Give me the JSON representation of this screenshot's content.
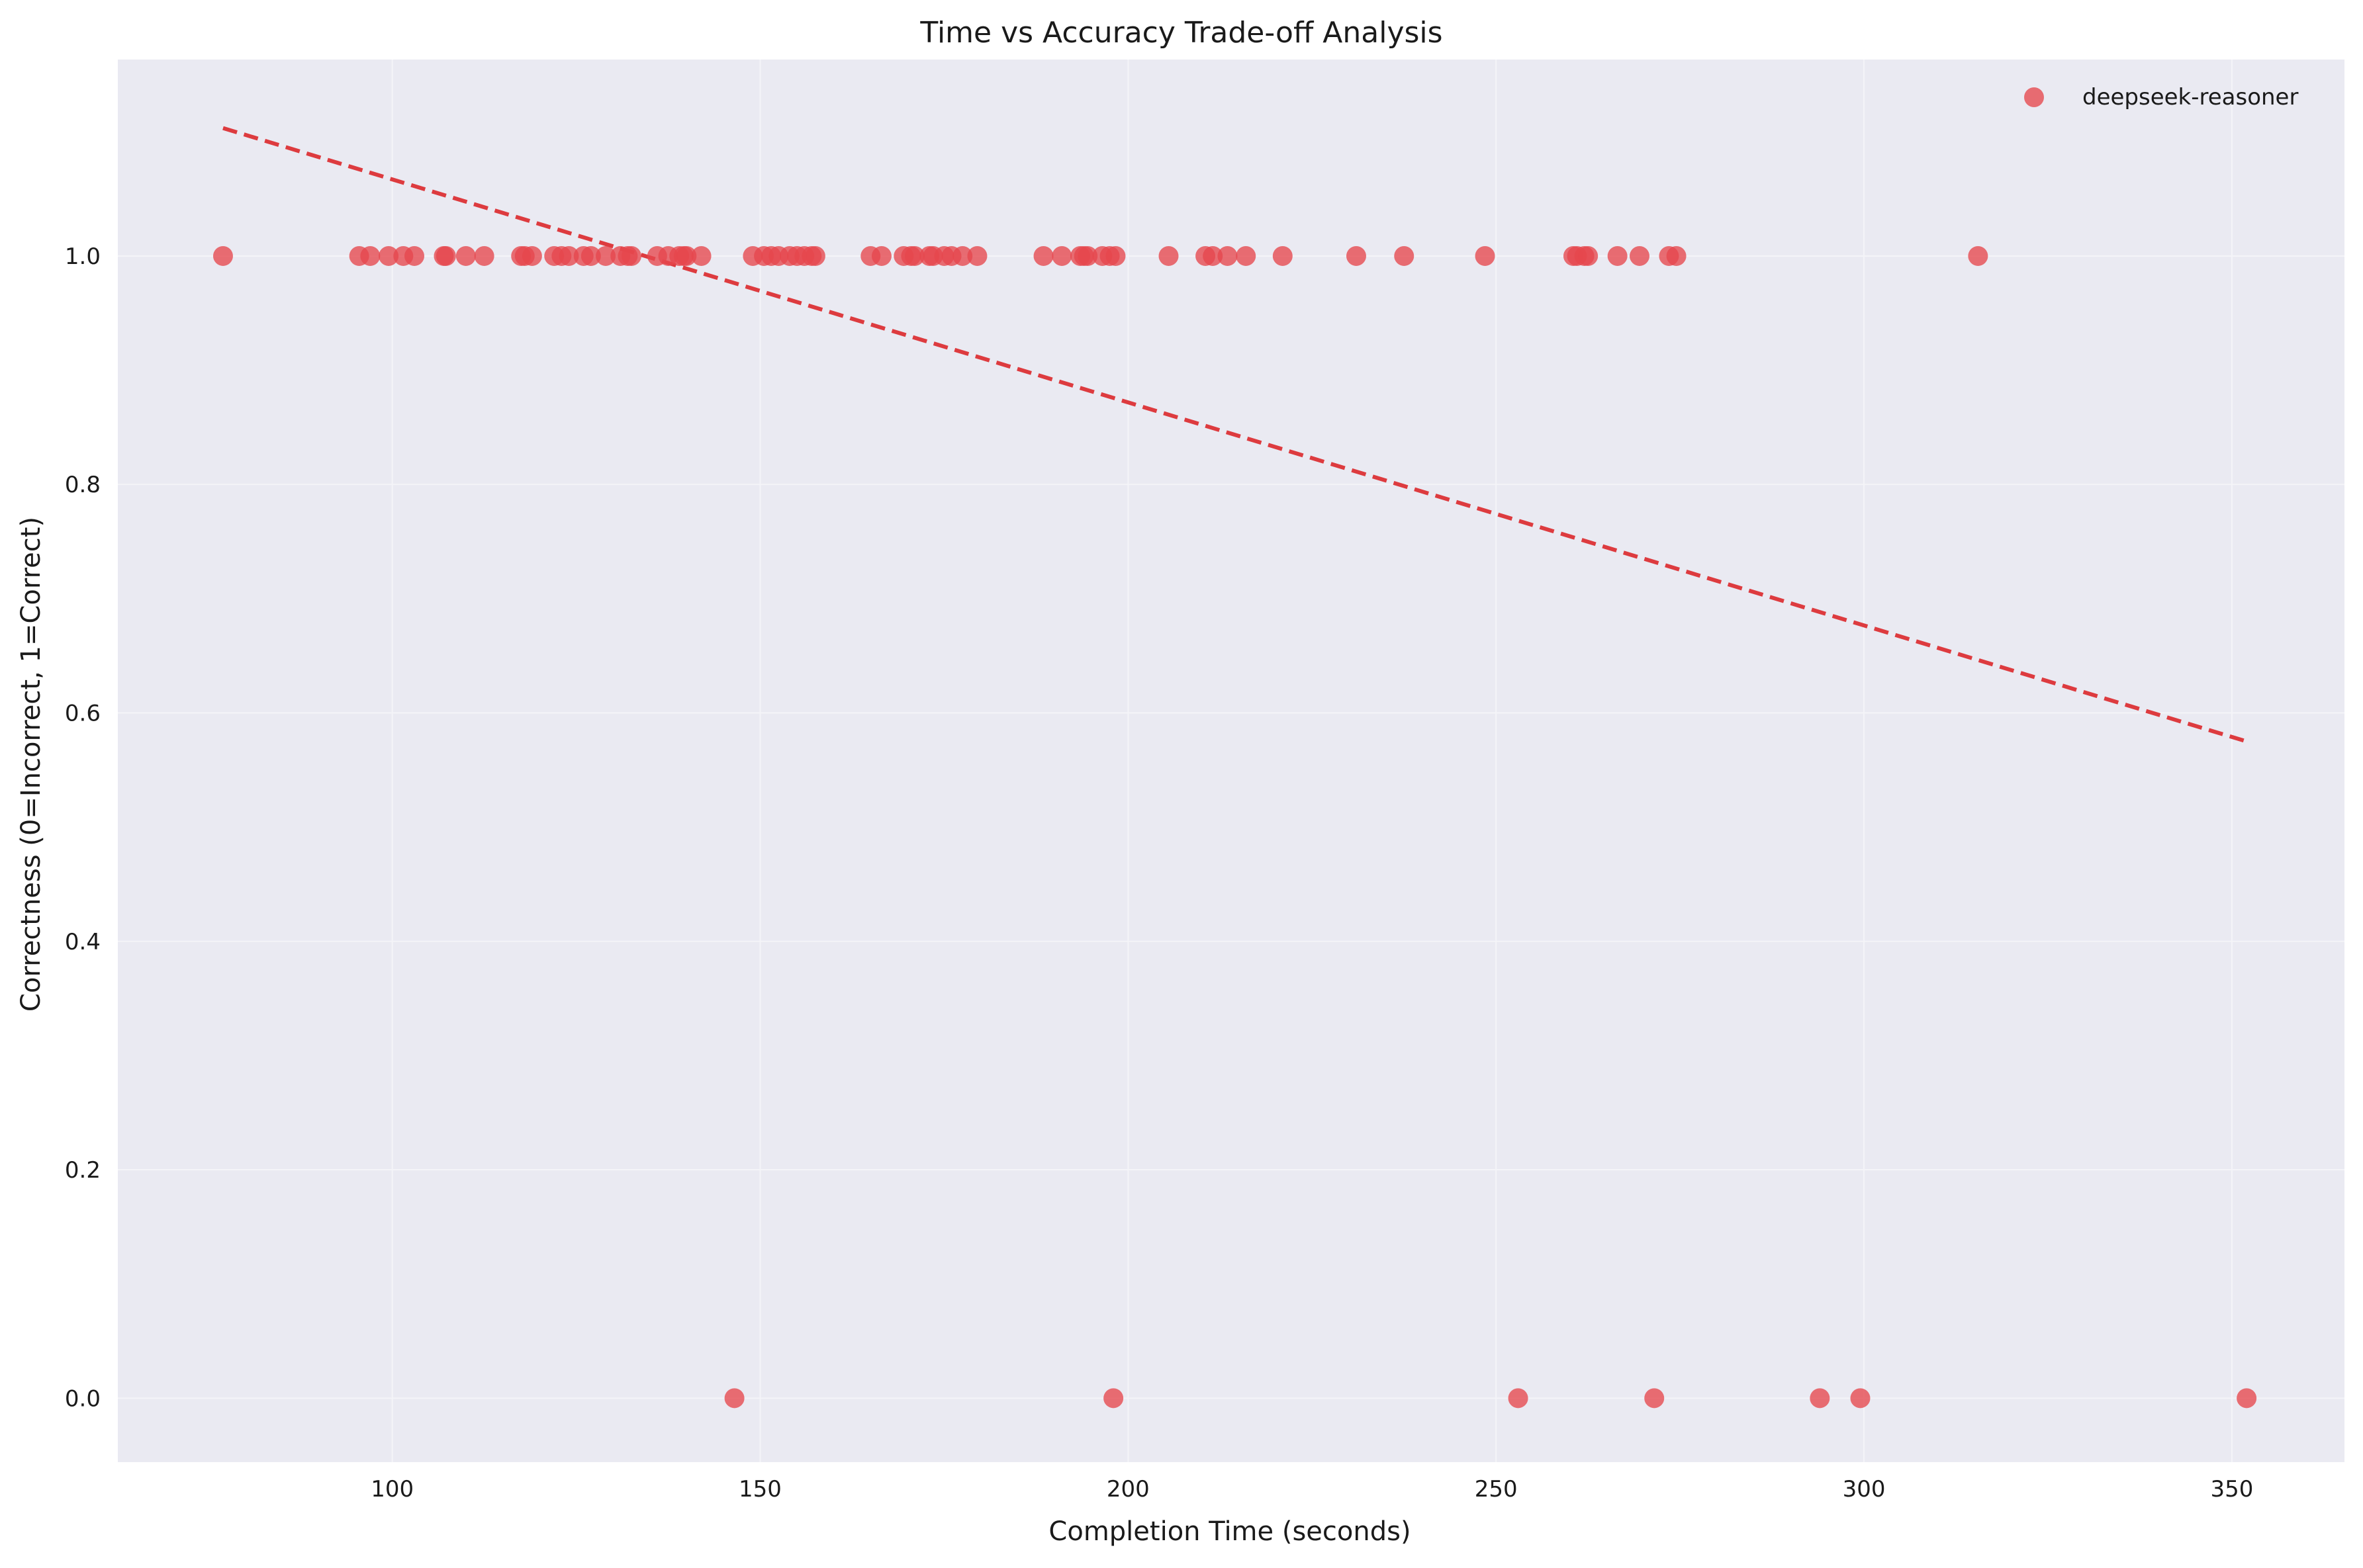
{
  "chart_data": {
    "type": "scatter",
    "title": "Time vs Accuracy Trade-off Analysis",
    "xlabel": "Completion Time (seconds)",
    "ylabel": "Correctness (0=Incorrect, 1=Correct)",
    "xlim": [
      62.7,
      365.3
    ],
    "ylim": [
      -0.056,
      1.172
    ],
    "xticks": [
      100,
      150,
      200,
      250,
      300,
      350
    ],
    "yticks": [
      0.0,
      0.2,
      0.4,
      0.6,
      0.8,
      1.0
    ],
    "grid": true,
    "legend_position": "top-right",
    "colors": {
      "background": "#eaeaf2",
      "grid": "#f4f4f8",
      "point": "#e6474d",
      "trend": "#dd3b3f"
    },
    "series": [
      {
        "name": "deepseek-reasoner",
        "x": [
          77,
          95.5,
          97,
          99.5,
          101.5,
          103,
          107,
          107.3,
          110,
          112.5,
          117.5,
          118,
          119,
          122,
          123,
          124,
          126,
          127,
          129,
          131,
          132,
          132.5,
          136,
          137.5,
          139,
          139.6,
          140,
          142,
          149,
          150.5,
          151.5,
          152.5,
          154,
          155,
          156,
          157,
          157.5,
          165,
          166.5,
          169.5,
          170.5,
          171,
          173,
          173.5,
          175,
          176,
          177.5,
          179.5,
          188.5,
          191,
          193.5,
          194,
          194.5,
          196.5,
          197.5,
          198.3,
          205.5,
          210.5,
          211.5,
          213.5,
          216,
          221,
          231,
          237.5,
          248.5,
          260.5,
          261,
          262,
          262.5,
          266.5,
          269.5,
          273.5,
          274.5,
          315.5,
          146.5,
          198,
          253,
          271.5,
          294,
          299.5,
          352
        ],
        "y": [
          1,
          1,
          1,
          1,
          1,
          1,
          1,
          1,
          1,
          1,
          1,
          1,
          1,
          1,
          1,
          1,
          1,
          1,
          1,
          1,
          1,
          1,
          1,
          1,
          1,
          1,
          1,
          1,
          1,
          1,
          1,
          1,
          1,
          1,
          1,
          1,
          1,
          1,
          1,
          1,
          1,
          1,
          1,
          1,
          1,
          1,
          1,
          1,
          1,
          1,
          1,
          1,
          1,
          1,
          1,
          1,
          1,
          1,
          1,
          1,
          1,
          1,
          1,
          1,
          1,
          1,
          1,
          1,
          1,
          1,
          1,
          1,
          1,
          1,
          0,
          0,
          0,
          0,
          0,
          0,
          0
        ]
      }
    ],
    "trend_line": {
      "x": [
        77,
        352
      ],
      "y": [
        1.112,
        0.575
      ]
    }
  }
}
